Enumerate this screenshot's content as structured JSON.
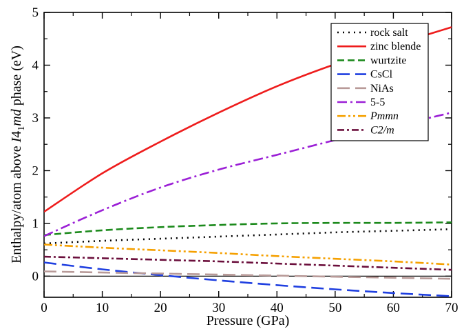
{
  "chart_data": {
    "type": "line",
    "xlabel": "Pressure (GPa)",
    "ylabel_parts": [
      "Enthalpy/atom above ",
      "I",
      "4",
      "1",
      "md",
      " phase (eV)"
    ],
    "xlim": [
      0,
      70
    ],
    "ylim": [
      -0.4,
      5
    ],
    "x_ticks": [
      "0",
      "10",
      "20",
      "30",
      "40",
      "50",
      "60",
      "70"
    ],
    "y_ticks": [
      "0",
      "1",
      "2",
      "3",
      "4",
      "5"
    ],
    "x_tick_values": [
      0,
      10,
      20,
      30,
      40,
      50,
      60,
      70
    ],
    "y_tick_values": [
      0,
      1,
      2,
      3,
      4,
      5
    ],
    "grid": false,
    "legend_position": "top-right",
    "zero_line": true,
    "x": [
      0,
      10,
      20,
      30,
      40,
      50,
      60,
      70
    ],
    "series": [
      {
        "name": "rock salt",
        "italic": false,
        "color": "#000000",
        "dash": "dot",
        "values": [
          0.62,
          0.67,
          0.71,
          0.75,
          0.79,
          0.83,
          0.86,
          0.89
        ]
      },
      {
        "name": "zinc blende",
        "italic": false,
        "color": "#ee1c1c",
        "dash": "solid",
        "values": [
          1.22,
          1.95,
          2.55,
          3.1,
          3.6,
          4.02,
          4.38,
          4.72
        ]
      },
      {
        "name": "wurtzite",
        "italic": false,
        "color": "#1c8a1c",
        "dash": "dash",
        "values": [
          0.78,
          0.87,
          0.93,
          0.97,
          1.0,
          1.01,
          1.01,
          1.02
        ]
      },
      {
        "name": "CsCl",
        "italic": false,
        "color": "#1f3fe0",
        "dash": "longdash",
        "values": [
          0.26,
          0.13,
          0.02,
          -0.08,
          -0.17,
          -0.25,
          -0.32,
          -0.38
        ]
      },
      {
        "name": "NiAs",
        "italic": false,
        "color": "#b89a98",
        "dash": "longdash",
        "values": [
          0.09,
          0.07,
          0.05,
          0.03,
          0.01,
          -0.01,
          -0.03,
          -0.05
        ]
      },
      {
        "name": "5-5",
        "italic": false,
        "color": "#9b1fd6",
        "dash": "dashdot",
        "values": [
          0.76,
          1.25,
          1.68,
          2.02,
          2.3,
          2.58,
          2.84,
          3.1
        ]
      },
      {
        "name": "Pmmn",
        "italic": true,
        "color": "#f5a000",
        "dash": "dashdotdot",
        "values": [
          0.6,
          0.54,
          0.49,
          0.44,
          0.38,
          0.33,
          0.28,
          0.22
        ]
      },
      {
        "name": "C2/m",
        "italic": true,
        "color": "#6b0f3c",
        "dash": "dashdot2",
        "values": [
          0.37,
          0.34,
          0.31,
          0.28,
          0.24,
          0.2,
          0.16,
          0.12
        ]
      }
    ]
  }
}
